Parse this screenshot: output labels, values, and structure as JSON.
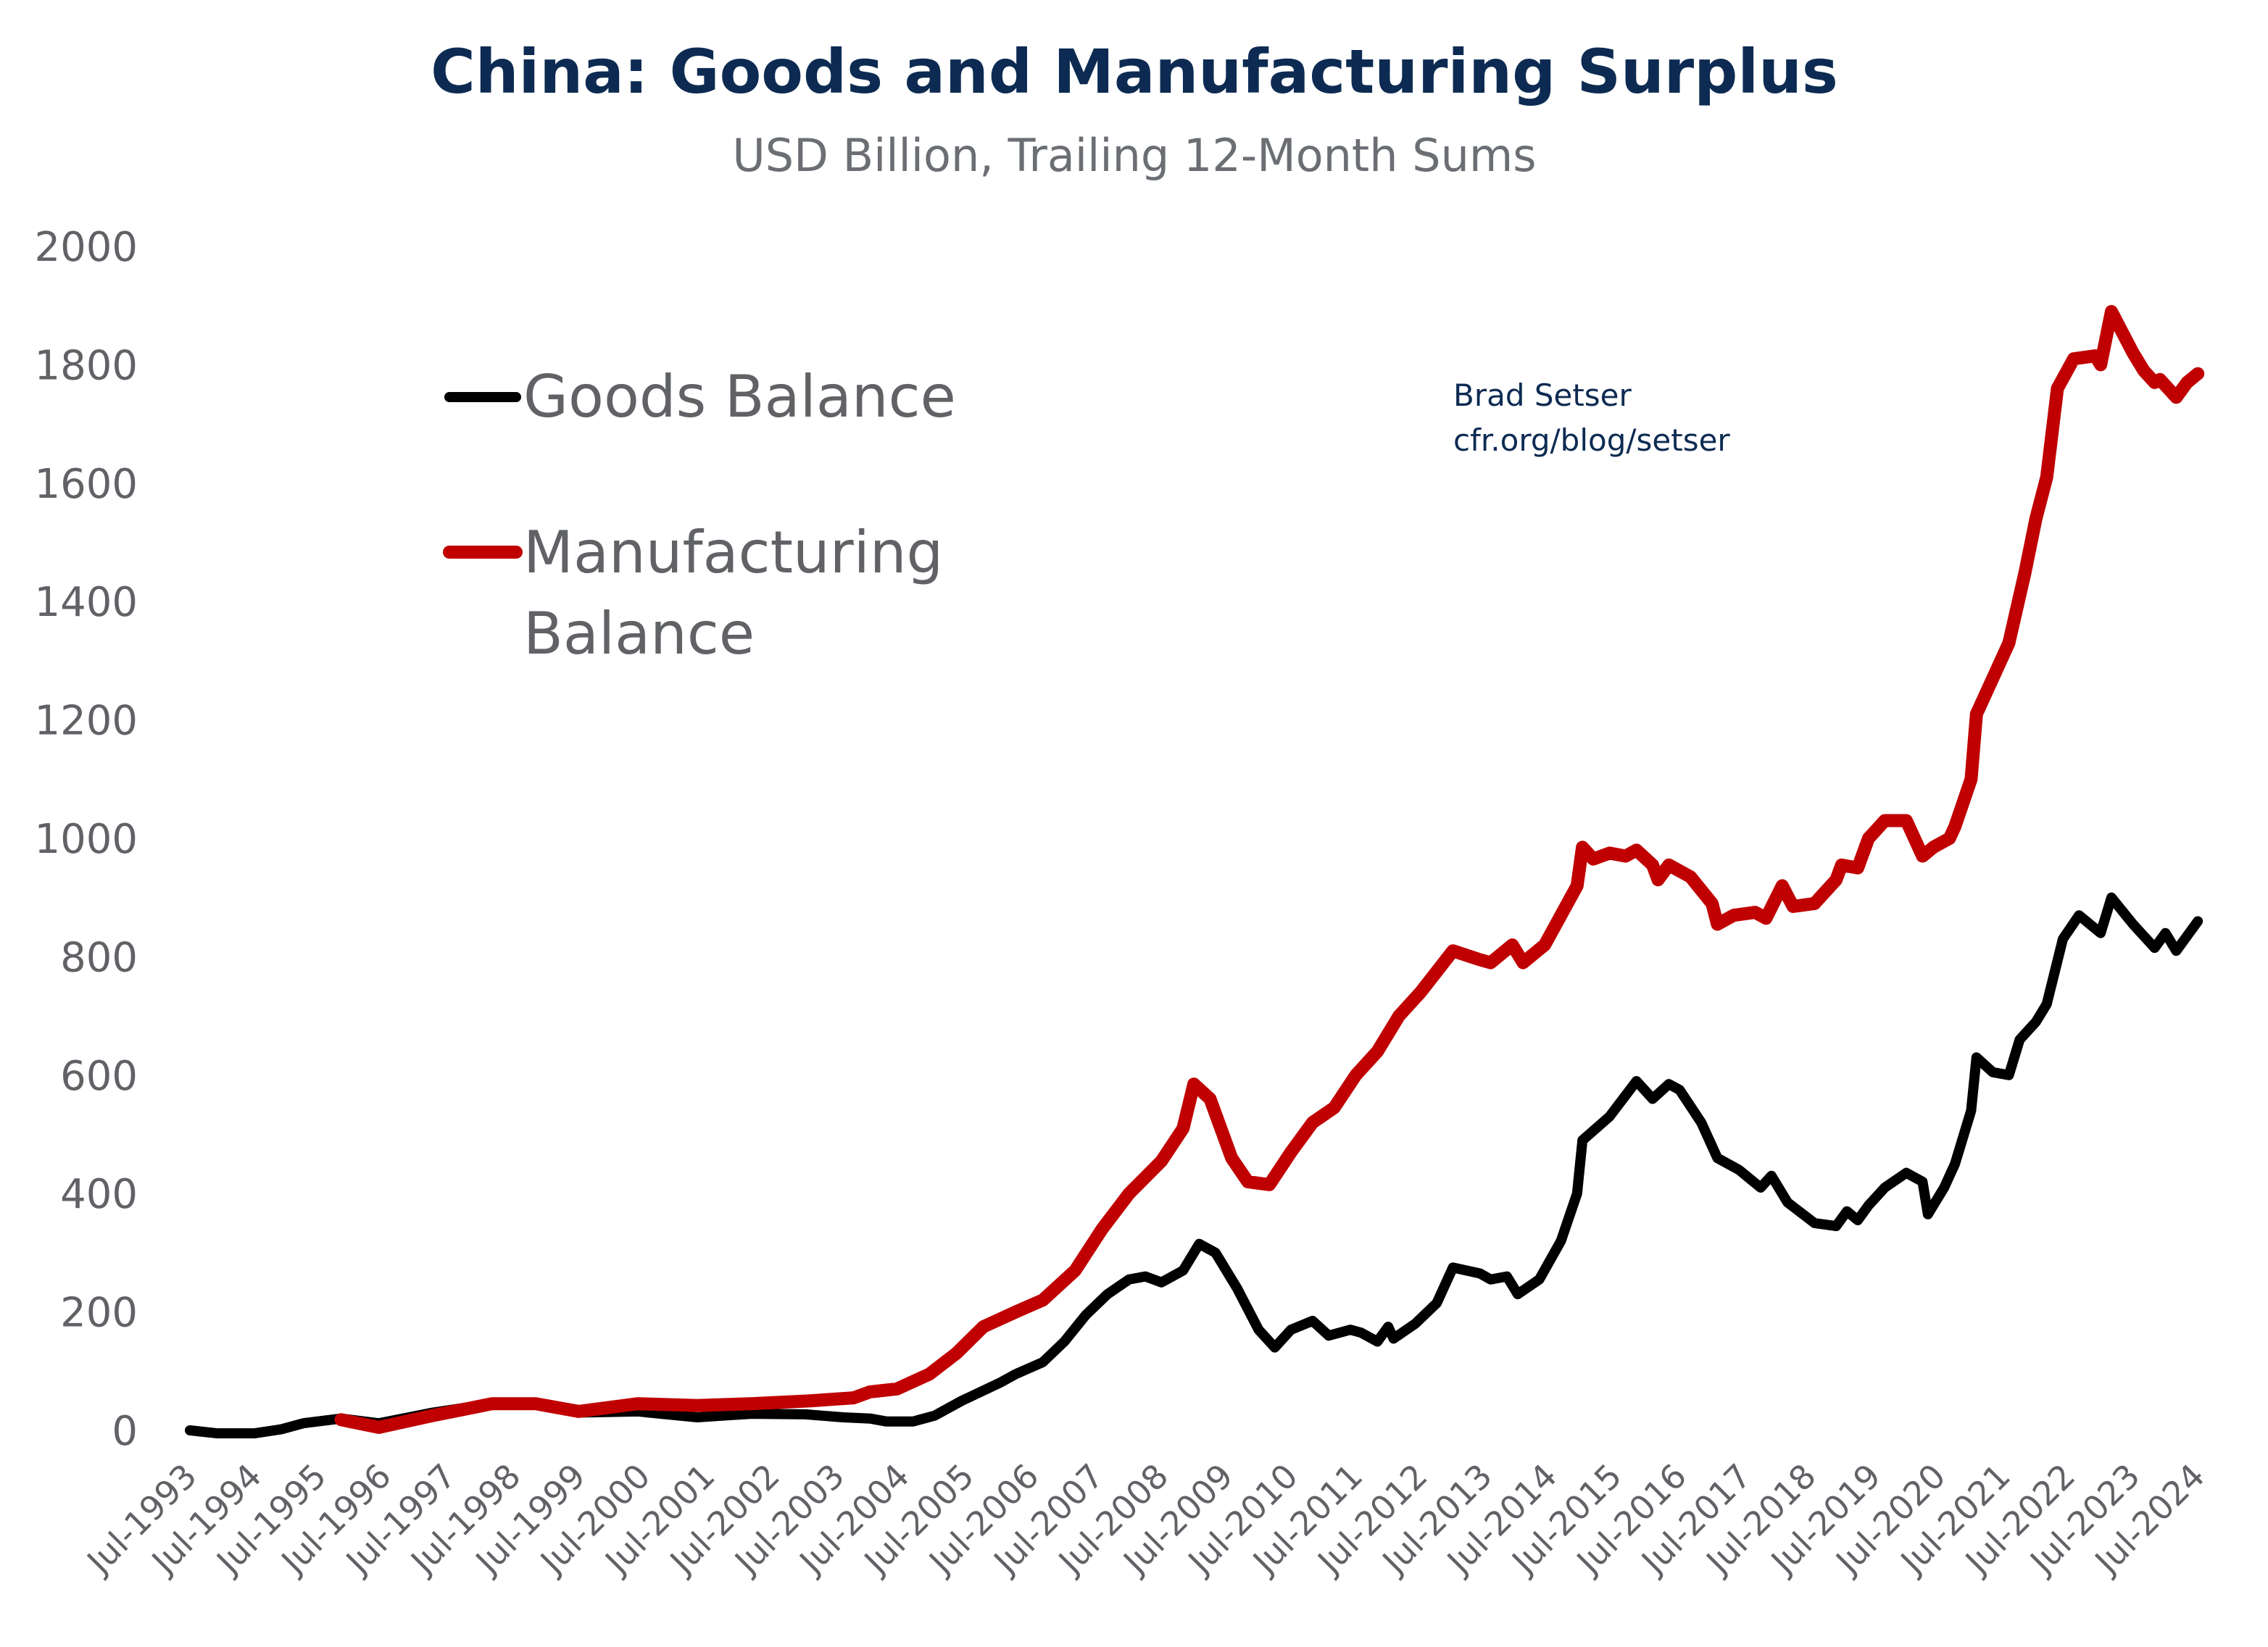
{
  "chart_data": {
    "type": "line",
    "title": "China: Goods and Manufacturing Surplus",
    "subtitle": "USD Billion, Trailing 12-Month Sums",
    "source": [
      "Brad Setser",
      "cfr.org/blog/setser"
    ],
    "xlabel": "",
    "ylabel": "",
    "ylim": [
      0,
      2000
    ],
    "yticks": [
      "0",
      "200",
      "400",
      "600",
      "800",
      "1000",
      "1200",
      "1400",
      "1600",
      "1800",
      "2000"
    ],
    "xticks": [
      "Jul-1993",
      "Jul-1994",
      "Jul-1995",
      "Jul-1996",
      "Jul-1997",
      "Jul-1998",
      "Jul-1999",
      "Jul-2000",
      "Jul-2001",
      "Jul-2002",
      "Jul-2003",
      "Jul-2004",
      "Jul-2005",
      "Jul-2006",
      "Jul-2007",
      "Jul-2008",
      "Jul-2009",
      "Jul-2010",
      "Jul-2011",
      "Jul-2012",
      "Jul-2013",
      "Jul-2014",
      "Jul-2015",
      "Jul-2016",
      "Jul-2017",
      "Jul-2018",
      "Jul-2019",
      "Jul-2020",
      "Jul-2021",
      "Jul-2022",
      "Jul-2023",
      "Jul-2024"
    ],
    "grid": false,
    "legend_position": "top-left",
    "series": [
      {
        "name": "Goods Balance",
        "legend_label": "Goods Balance",
        "color": "#000000",
        "points": [
          [
            "1993-07",
            0
          ],
          [
            "1993-12",
            -5
          ],
          [
            "1994-07",
            -5
          ],
          [
            "1994-12",
            2
          ],
          [
            "1995-04",
            12
          ],
          [
            "1995-11",
            20
          ],
          [
            "1996-06",
            12
          ],
          [
            "1997-04",
            30
          ],
          [
            "1998-03",
            45
          ],
          [
            "1998-11",
            45
          ],
          [
            "1999-07",
            30
          ],
          [
            "2000-06",
            32
          ],
          [
            "2001-05",
            22
          ],
          [
            "2002-03",
            28
          ],
          [
            "2003-01",
            27
          ],
          [
            "2003-08",
            22
          ],
          [
            "2004-01",
            20
          ],
          [
            "2004-04",
            15
          ],
          [
            "2004-09",
            15
          ],
          [
            "2005-01",
            25
          ],
          [
            "2005-06",
            50
          ],
          [
            "2006-01",
            80
          ],
          [
            "2006-04",
            95
          ],
          [
            "2006-09",
            115
          ],
          [
            "2007-01",
            150
          ],
          [
            "2007-05",
            195
          ],
          [
            "2007-09",
            230
          ],
          [
            "2008-01",
            255
          ],
          [
            "2008-04",
            260
          ],
          [
            "2008-07",
            250
          ],
          [
            "2008-11",
            270
          ],
          [
            "2009-02",
            315
          ],
          [
            "2009-05",
            300
          ],
          [
            "2009-09",
            240
          ],
          [
            "2010-01",
            170
          ],
          [
            "2010-04",
            140
          ],
          [
            "2010-07",
            170
          ],
          [
            "2010-11",
            185
          ],
          [
            "2011-02",
            160
          ],
          [
            "2011-06",
            170
          ],
          [
            "2011-08",
            165
          ],
          [
            "2011-11",
            150
          ],
          [
            "2012-01",
            175
          ],
          [
            "2012-02",
            155
          ],
          [
            "2012-06",
            180
          ],
          [
            "2012-10",
            215
          ],
          [
            "2013-01",
            275
          ],
          [
            "2013-06",
            265
          ],
          [
            "2013-08",
            255
          ],
          [
            "2013-11",
            260
          ],
          [
            "2014-01",
            230
          ],
          [
            "2014-05",
            255
          ],
          [
            "2014-09",
            320
          ],
          [
            "2014-12",
            400
          ],
          [
            "2015-01",
            490
          ],
          [
            "2015-06",
            530
          ],
          [
            "2015-11",
            590
          ],
          [
            "2016-02",
            560
          ],
          [
            "2016-05",
            585
          ],
          [
            "2016-07",
            575
          ],
          [
            "2016-11",
            520
          ],
          [
            "2017-02",
            460
          ],
          [
            "2017-06",
            440
          ],
          [
            "2017-10",
            410
          ],
          [
            "2017-12",
            430
          ],
          [
            "2018-03",
            385
          ],
          [
            "2018-08",
            350
          ],
          [
            "2018-12",
            345
          ],
          [
            "2019-02",
            370
          ],
          [
            "2019-04",
            355
          ],
          [
            "2019-06",
            380
          ],
          [
            "2019-09",
            410
          ],
          [
            "2020-01",
            435
          ],
          [
            "2020-04",
            420
          ],
          [
            "2020-05",
            365
          ],
          [
            "2020-08",
            410
          ],
          [
            "2020-10",
            450
          ],
          [
            "2021-01",
            540
          ],
          [
            "2021-02",
            630
          ],
          [
            "2021-05",
            605
          ],
          [
            "2021-08",
            600
          ],
          [
            "2021-10",
            660
          ],
          [
            "2022-01",
            690
          ],
          [
            "2022-03",
            720
          ],
          [
            "2022-06",
            830
          ],
          [
            "2022-09",
            870
          ],
          [
            "2023-01",
            840
          ],
          [
            "2023-03",
            900
          ],
          [
            "2023-07",
            855
          ],
          [
            "2023-09",
            835
          ],
          [
            "2023-11",
            815
          ],
          [
            "2024-01",
            840
          ],
          [
            "2024-03",
            810
          ],
          [
            "2024-07",
            860
          ]
        ]
      },
      {
        "name": "Manufacturing Balance",
        "legend_label": "Manufacturing Balance",
        "color": "#c00000",
        "points": [
          [
            "1995-11",
            18
          ],
          [
            "1996-06",
            5
          ],
          [
            "1997-04",
            25
          ],
          [
            "1998-03",
            45
          ],
          [
            "1998-11",
            45
          ],
          [
            "1999-07",
            32
          ],
          [
            "2000-06",
            45
          ],
          [
            "2001-05",
            42
          ],
          [
            "2002-03",
            45
          ],
          [
            "2003-02",
            50
          ],
          [
            "2003-10",
            55
          ],
          [
            "2004-01",
            65
          ],
          [
            "2004-06",
            70
          ],
          [
            "2004-12",
            95
          ],
          [
            "2005-05",
            130
          ],
          [
            "2005-10",
            175
          ],
          [
            "2006-04",
            200
          ],
          [
            "2006-09",
            220
          ],
          [
            "2007-03",
            270
          ],
          [
            "2007-08",
            340
          ],
          [
            "2008-01",
            400
          ],
          [
            "2008-07",
            455
          ],
          [
            "2008-11",
            510
          ],
          [
            "2009-01",
            585
          ],
          [
            "2009-04",
            560
          ],
          [
            "2009-08",
            460
          ],
          [
            "2009-11",
            420
          ],
          [
            "2010-03",
            415
          ],
          [
            "2010-07",
            470
          ],
          [
            "2010-11",
            520
          ],
          [
            "2011-03",
            545
          ],
          [
            "2011-07",
            600
          ],
          [
            "2011-11",
            640
          ],
          [
            "2012-03",
            700
          ],
          [
            "2012-07",
            740
          ],
          [
            "2013-01",
            810
          ],
          [
            "2013-06",
            795
          ],
          [
            "2013-08",
            790
          ],
          [
            "2013-12",
            820
          ],
          [
            "2014-02",
            790
          ],
          [
            "2014-06",
            820
          ],
          [
            "2014-09",
            870
          ],
          [
            "2014-12",
            920
          ],
          [
            "2015-01",
            985
          ],
          [
            "2015-03",
            965
          ],
          [
            "2015-06",
            975
          ],
          [
            "2015-09",
            970
          ],
          [
            "2015-11",
            980
          ],
          [
            "2016-02",
            955
          ],
          [
            "2016-03",
            930
          ],
          [
            "2016-05",
            955
          ],
          [
            "2016-09",
            935
          ],
          [
            "2017-01",
            890
          ],
          [
            "2017-02",
            855
          ],
          [
            "2017-05",
            870
          ],
          [
            "2017-09",
            875
          ],
          [
            "2017-11",
            865
          ],
          [
            "2018-02",
            920
          ],
          [
            "2018-04",
            885
          ],
          [
            "2018-08",
            890
          ],
          [
            "2018-12",
            930
          ],
          [
            "2019-01",
            955
          ],
          [
            "2019-04",
            950
          ],
          [
            "2019-06",
            1000
          ],
          [
            "2019-09",
            1030
          ],
          [
            "2020-01",
            1030
          ],
          [
            "2020-04",
            970
          ],
          [
            "2020-06",
            985
          ],
          [
            "2020-09",
            1000
          ],
          [
            "2020-10",
            1020
          ],
          [
            "2021-01",
            1100
          ],
          [
            "2021-02",
            1210
          ],
          [
            "2021-05",
            1270
          ],
          [
            "2021-08",
            1330
          ],
          [
            "2021-11",
            1450
          ],
          [
            "2022-01",
            1540
          ],
          [
            "2022-03",
            1610
          ],
          [
            "2022-05",
            1760
          ],
          [
            "2022-08",
            1810
          ],
          [
            "2022-12",
            1815
          ],
          [
            "2023-01",
            1800
          ],
          [
            "2023-03",
            1890
          ],
          [
            "2023-07",
            1820
          ],
          [
            "2023-09",
            1790
          ],
          [
            "2023-11",
            1770
          ],
          [
            "2023-12",
            1775
          ],
          [
            "2024-03",
            1745
          ],
          [
            "2024-05",
            1770
          ],
          [
            "2024-07",
            1785
          ]
        ]
      }
    ]
  }
}
